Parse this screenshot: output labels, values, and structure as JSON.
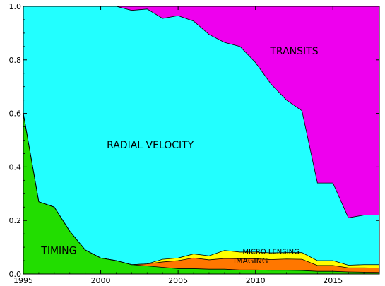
{
  "chart_data": {
    "type": "area",
    "stacked": true,
    "normalized": true,
    "title": "",
    "xlabel": "",
    "ylabel": "",
    "xlim": [
      1995,
      2018
    ],
    "ylim": [
      0,
      1
    ],
    "grid": false,
    "x_ticks": [
      1995,
      2000,
      2005,
      2010,
      2015
    ],
    "x_tick_labels": [
      "1995",
      "2000",
      "2005",
      "2010",
      "2015"
    ],
    "y_ticks": [
      0,
      0.2,
      0.4,
      0.6,
      0.8,
      1.0
    ],
    "y_tick_labels": [
      "0.0",
      "0.2",
      "0.4",
      "0.6",
      "0.8",
      "1.0"
    ],
    "x": [
      1995,
      1996,
      1997,
      1998,
      1999,
      2000,
      2001,
      2002,
      2003,
      2004,
      2005,
      2006,
      2007,
      2008,
      2009,
      2010,
      2011,
      2012,
      2013,
      2014,
      2015,
      2016,
      2017,
      2018
    ],
    "series": [
      {
        "name": "TIMING",
        "color": "#22dd00",
        "values": [
          0.6,
          0.27,
          0.25,
          0.16,
          0.09,
          0.06,
          0.05,
          0.035,
          0.03,
          0.025,
          0.02,
          0.02,
          0.018,
          0.018,
          0.015,
          0.015,
          0.014,
          0.014,
          0.013,
          0.01,
          0.01,
          0.008,
          0.007,
          0.006
        ]
      },
      {
        "name": "IMAGING",
        "color": "#ff7700",
        "values": [
          0,
          0,
          0,
          0,
          0,
          0,
          0,
          0,
          0.008,
          0.02,
          0.03,
          0.04,
          0.035,
          0.04,
          0.042,
          0.042,
          0.04,
          0.042,
          0.042,
          0.022,
          0.022,
          0.015,
          0.016,
          0.016
        ]
      },
      {
        "name": "MICRO LENSING",
        "color": "#ffff00",
        "values": [
          0,
          0,
          0,
          0,
          0,
          0,
          0,
          0,
          0,
          0.01,
          0.01,
          0.015,
          0.015,
          0.03,
          0.025,
          0.025,
          0.025,
          0.024,
          0.025,
          0.018,
          0.018,
          0.01,
          0.012,
          0.013
        ]
      },
      {
        "name": "RADIAL VELOCITY",
        "color": "#22ffff",
        "values": [
          0.4,
          0.73,
          0.75,
          0.84,
          0.91,
          0.94,
          0.95,
          0.95,
          0.952,
          0.9,
          0.905,
          0.87,
          0.827,
          0.777,
          0.768,
          0.708,
          0.631,
          0.57,
          0.53,
          0.29,
          0.29,
          0.177,
          0.185,
          0.185
        ]
      },
      {
        "name": "TRANSITS",
        "color": "#ee00ee",
        "values": [
          0,
          0,
          0,
          0,
          0,
          0,
          0,
          0.015,
          0.01,
          0.045,
          0.035,
          0.055,
          0.105,
          0.135,
          0.15,
          0.21,
          0.29,
          0.35,
          0.39,
          0.66,
          0.66,
          0.79,
          0.78,
          0.78
        ]
      }
    ],
    "annotations": [
      {
        "text": "TRANSITS",
        "x": 2012.5,
        "y": 0.82
      },
      {
        "text": "RADIAL VELOCITY",
        "x": 2003.2,
        "y": 0.47
      },
      {
        "text": "TIMING",
        "x": 1997.3,
        "y": 0.075
      },
      {
        "text": "MICRO LENSING",
        "x": 2011.0,
        "y": 0.075
      },
      {
        "text": "IMAGING",
        "x": 2009.7,
        "y": 0.04
      }
    ]
  }
}
